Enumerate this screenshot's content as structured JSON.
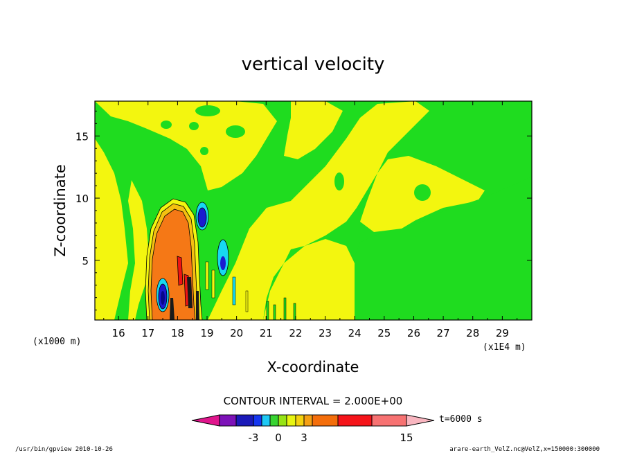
{
  "chart_data": {
    "type": "heatmap",
    "title": "vertical velocity",
    "xlabel": "X-coordinate",
    "ylabel": "Z-coordinate",
    "x_unit_left": "(x1000 m)",
    "x_unit_right": "(x1E4 m)",
    "xlim": [
      15.2,
      30.0
    ],
    "ylim": [
      0.2,
      17.8
    ],
    "xticks": [
      "16",
      "17",
      "18",
      "19",
      "20",
      "21",
      "22",
      "23",
      "24",
      "25",
      "26",
      "27",
      "28",
      "29"
    ],
    "xtick_values": [
      16,
      17,
      18,
      19,
      20,
      21,
      22,
      23,
      24,
      25,
      26,
      27,
      28,
      29
    ],
    "yticks": [
      "5",
      "10",
      "15"
    ],
    "ytick_values": [
      5,
      10,
      15
    ],
    "contour_interval_text": "CONTOUR INTERVAL = 2.000E+00",
    "colorbar": {
      "tick_labels": [
        "-3",
        "0",
        "3",
        "15"
      ],
      "time_label": "t=6000 s",
      "colors": [
        "#e0158c",
        "#7d12b8",
        "#1b1ab9",
        "#1537f0",
        "#1ec8f5",
        "#38d432",
        "#96e415",
        "#e8f511",
        "#f5d20f",
        "#f5a014",
        "#f46e0b",
        "#f5141a",
        "#f77272",
        "#f9b6c0"
      ]
    },
    "field_colors": {
      "background_green": "#1fdc1f",
      "yellow": "#f3f60f",
      "orange": "#f57816",
      "red": "#f01412",
      "cyan": "#17d8f1",
      "blue": "#1a1ad0",
      "dark_blue": "#07078a"
    }
  },
  "footer": {
    "left": "/usr/bin/gpview   2010-10-26",
    "right": "arare-earth_VelZ.nc@VelZ,x=150000:300000"
  }
}
